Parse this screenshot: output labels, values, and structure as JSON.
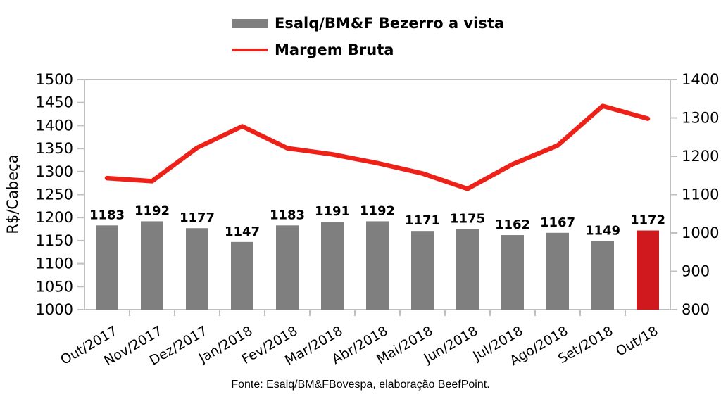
{
  "legend": {
    "items": [
      {
        "label": "Esalq/BM&F Bezerro a vista",
        "swatch": "bar-swatch"
      },
      {
        "label": "Margem Bruta",
        "swatch": "line-swatch"
      }
    ]
  },
  "footer": "Fonte: Esalq/BM&FBovespa, elaboração BeefPoint.",
  "colors": {
    "bar_gray": "#7f7f7f",
    "bar_highlight_red": "#cf191f",
    "line_red": "#ee2119",
    "axis_gray": "#bfbfbf",
    "text_black": "#000000"
  },
  "chart_data": {
    "type": "bar",
    "subtype": "bar+line dual-axis",
    "categories": [
      "Out/2017",
      "Nov/2017",
      "Dez/2017",
      "Jan/2018",
      "Fev/2018",
      "Mar/2018",
      "Abr/2018",
      "Mai/2018",
      "Jun/2018",
      "Jul/2018",
      "Ago/2018",
      "Set/2018",
      "Out/18"
    ],
    "series": [
      {
        "name": "Esalq/BM&F Bezerro a vista",
        "type": "bar",
        "axis": "left",
        "color": "#7f7f7f",
        "last_bar_color": "#cf191f",
        "values": [
          1183,
          1192,
          1177,
          1147,
          1183,
          1191,
          1192,
          1171,
          1175,
          1162,
          1167,
          1149,
          1172
        ],
        "value_labels_shown": true
      },
      {
        "name": "Margem Bruta",
        "type": "line",
        "axis": "right",
        "color": "#ee2119",
        "values": [
          1143,
          1135,
          1222,
          1278,
          1221,
          1205,
          1182,
          1155,
          1115,
          1179,
          1228,
          1331,
          1298
        ]
      }
    ],
    "axes": {
      "left": {
        "title": "R$/Cabeça",
        "min": 1000,
        "max": 1500,
        "ticks": [
          1000,
          1050,
          1100,
          1150,
          1200,
          1250,
          1300,
          1350,
          1400,
          1450,
          1500
        ]
      },
      "right": {
        "title": "",
        "min": 800,
        "max": 1400,
        "ticks": [
          800,
          900,
          1000,
          1100,
          1200,
          1300,
          1400
        ]
      }
    },
    "grid": "top-border-only",
    "legend_position": "top-center",
    "x_label_rotation_deg": -30
  }
}
